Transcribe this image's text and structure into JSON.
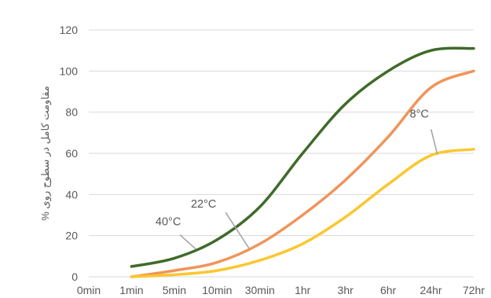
{
  "chart_data": {
    "type": "line",
    "title": "",
    "xlabel": "",
    "ylabel": "% مقاومت کامل در سطوح روی",
    "ylim": [
      0,
      120
    ],
    "yticks": [
      0,
      20,
      40,
      60,
      80,
      100,
      120
    ],
    "grid": true,
    "legend": "none",
    "x": [
      "0min",
      "1min",
      "5min",
      "10min",
      "30min",
      "1hr",
      "3hr",
      "6hr",
      "24hr",
      "72hr"
    ],
    "series": [
      {
        "name": "40°C",
        "color": "#3f6b2a",
        "points": [
          [
            1,
            5
          ],
          [
            2,
            9
          ],
          [
            3,
            18
          ],
          [
            4,
            34
          ],
          [
            5,
            60
          ],
          [
            6,
            84
          ],
          [
            7,
            100
          ],
          [
            8,
            110
          ],
          [
            9,
            111
          ]
        ]
      },
      {
        "name": "22°C",
        "color": "#f0945a",
        "points": [
          [
            1,
            0
          ],
          [
            2,
            3
          ],
          [
            3,
            7
          ],
          [
            4,
            16
          ],
          [
            5,
            30
          ],
          [
            6,
            47
          ],
          [
            7,
            68
          ],
          [
            8,
            92
          ],
          [
            9,
            100
          ]
        ]
      },
      {
        "name": "8°C",
        "color": "#fac72f",
        "points": [
          [
            1,
            0
          ],
          [
            2,
            1
          ],
          [
            3,
            3
          ],
          [
            4,
            8
          ],
          [
            5,
            16
          ],
          [
            6,
            29
          ],
          [
            7,
            45
          ],
          [
            8,
            59
          ],
          [
            9,
            62
          ]
        ]
      }
    ],
    "annotations": [
      {
        "text": "40°C",
        "series": 0,
        "at_x": 2.5
      },
      {
        "text": "22°C",
        "series": 1,
        "at_x": 3.75
      },
      {
        "text": "8°C",
        "series": 2,
        "at_x": 8.15
      }
    ]
  }
}
